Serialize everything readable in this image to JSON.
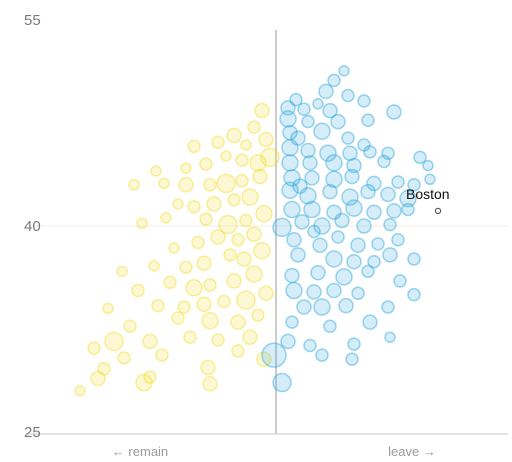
{
  "chart_data": {
    "type": "scatter",
    "title": "",
    "xlabel": "",
    "ylabel": "",
    "x_caption_left": "← remain",
    "x_caption_right": "leave →",
    "ylim": [
      25,
      55
    ],
    "xlim": [
      -1,
      1
    ],
    "yticks": [
      "55",
      "40",
      "25"
    ],
    "ytick_values": [
      55,
      40,
      25
    ],
    "grid": false,
    "reference_line_y": 40,
    "divider_x": 0,
    "colors": {
      "remain": "#f2dc28",
      "leave": "#2aa5dc",
      "annotation": "#555555",
      "axis": "#9a9a9a"
    },
    "annotation": {
      "label": "Boston",
      "x": 0.81,
      "y": 41.1
    },
    "series": [
      {
        "name": "remain",
        "points": [
          {
            "x": -0.07,
            "y": 48.4,
            "s": 7
          },
          {
            "x": -0.11,
            "y": 47.2,
            "s": 6
          },
          {
            "x": -0.21,
            "y": 46.6,
            "s": 7
          },
          {
            "x": -0.29,
            "y": 46.1,
            "s": 6
          },
          {
            "x": -0.05,
            "y": 46.3,
            "s": 7
          },
          {
            "x": -0.15,
            "y": 45.9,
            "s": 5
          },
          {
            "x": -0.41,
            "y": 45.8,
            "s": 6
          },
          {
            "x": -0.03,
            "y": 45.0,
            "s": 9
          },
          {
            "x": -0.09,
            "y": 44.6,
            "s": 8
          },
          {
            "x": -0.17,
            "y": 44.8,
            "s": 6
          },
          {
            "x": -0.25,
            "y": 45.1,
            "s": 5
          },
          {
            "x": -0.35,
            "y": 44.5,
            "s": 6
          },
          {
            "x": -0.45,
            "y": 44.2,
            "s": 5
          },
          {
            "x": -0.6,
            "y": 44.0,
            "s": 5
          },
          {
            "x": -0.08,
            "y": 43.6,
            "s": 7
          },
          {
            "x": -0.17,
            "y": 43.3,
            "s": 6
          },
          {
            "x": -0.25,
            "y": 43.1,
            "s": 9
          },
          {
            "x": -0.33,
            "y": 43.0,
            "s": 6
          },
          {
            "x": -0.45,
            "y": 43.0,
            "s": 7
          },
          {
            "x": -0.56,
            "y": 43.1,
            "s": 5
          },
          {
            "x": -0.71,
            "y": 43.0,
            "s": 5
          },
          {
            "x": -0.13,
            "y": 42.1,
            "s": 8
          },
          {
            "x": -0.21,
            "y": 41.9,
            "s": 6
          },
          {
            "x": -0.31,
            "y": 41.6,
            "s": 7
          },
          {
            "x": -0.41,
            "y": 41.4,
            "s": 6
          },
          {
            "x": -0.49,
            "y": 41.6,
            "s": 5
          },
          {
            "x": -0.06,
            "y": 40.9,
            "s": 8
          },
          {
            "x": -0.15,
            "y": 40.4,
            "s": 6
          },
          {
            "x": -0.24,
            "y": 40.1,
            "s": 9
          },
          {
            "x": -0.35,
            "y": 40.5,
            "s": 6
          },
          {
            "x": -0.55,
            "y": 40.6,
            "s": 5
          },
          {
            "x": -0.67,
            "y": 40.2,
            "s": 5
          },
          {
            "x": -0.11,
            "y": 39.4,
            "s": 7
          },
          {
            "x": -0.19,
            "y": 39.0,
            "s": 6
          },
          {
            "x": -0.29,
            "y": 39.2,
            "s": 7
          },
          {
            "x": -0.39,
            "y": 38.8,
            "s": 6
          },
          {
            "x": -0.51,
            "y": 38.4,
            "s": 5
          },
          {
            "x": -0.07,
            "y": 38.2,
            "s": 8
          },
          {
            "x": -0.16,
            "y": 37.6,
            "s": 7
          },
          {
            "x": -0.23,
            "y": 37.9,
            "s": 6
          },
          {
            "x": -0.36,
            "y": 37.3,
            "s": 7
          },
          {
            "x": -0.45,
            "y": 37.0,
            "s": 6
          },
          {
            "x": -0.61,
            "y": 37.1,
            "s": 5
          },
          {
            "x": -0.77,
            "y": 36.7,
            "s": 5
          },
          {
            "x": -0.11,
            "y": 36.5,
            "s": 8
          },
          {
            "x": -0.21,
            "y": 36.0,
            "s": 7
          },
          {
            "x": -0.33,
            "y": 35.7,
            "s": 6
          },
          {
            "x": -0.41,
            "y": 35.5,
            "s": 8
          },
          {
            "x": -0.53,
            "y": 35.9,
            "s": 6
          },
          {
            "x": -0.69,
            "y": 35.3,
            "s": 6
          },
          {
            "x": -0.05,
            "y": 35.1,
            "s": 7
          },
          {
            "x": -0.15,
            "y": 34.6,
            "s": 9
          },
          {
            "x": -0.26,
            "y": 34.5,
            "s": 6
          },
          {
            "x": -0.36,
            "y": 34.3,
            "s": 7
          },
          {
            "x": -0.46,
            "y": 34.1,
            "s": 6
          },
          {
            "x": -0.59,
            "y": 34.2,
            "s": 6
          },
          {
            "x": -0.84,
            "y": 34.0,
            "s": 5
          },
          {
            "x": -0.09,
            "y": 33.5,
            "s": 6
          },
          {
            "x": -0.19,
            "y": 33.0,
            "s": 7
          },
          {
            "x": -0.33,
            "y": 33.1,
            "s": 8
          },
          {
            "x": -0.49,
            "y": 33.3,
            "s": 6
          },
          {
            "x": -0.73,
            "y": 32.7,
            "s": 6
          },
          {
            "x": -0.13,
            "y": 31.9,
            "s": 7
          },
          {
            "x": -0.29,
            "y": 31.7,
            "s": 6
          },
          {
            "x": -0.43,
            "y": 31.9,
            "s": 6
          },
          {
            "x": -0.63,
            "y": 31.6,
            "s": 7
          },
          {
            "x": -0.81,
            "y": 31.6,
            "s": 9
          },
          {
            "x": -0.91,
            "y": 31.1,
            "s": 6
          },
          {
            "x": -0.57,
            "y": 30.6,
            "s": 6
          },
          {
            "x": -0.76,
            "y": 30.4,
            "s": 6
          },
          {
            "x": -0.34,
            "y": 29.7,
            "s": 7
          },
          {
            "x": -0.86,
            "y": 29.6,
            "s": 6
          },
          {
            "x": -0.63,
            "y": 29.0,
            "s": 6
          },
          {
            "x": -0.89,
            "y": 28.9,
            "s": 7
          },
          {
            "x": -0.33,
            "y": 28.5,
            "s": 7
          },
          {
            "x": -0.66,
            "y": 28.6,
            "s": 8
          },
          {
            "x": -0.98,
            "y": 28.0,
            "s": 5
          },
          {
            "x": -0.06,
            "y": 30.3,
            "s": 7
          },
          {
            "x": -0.19,
            "y": 30.9,
            "s": 6
          }
        ]
      },
      {
        "name": "leave",
        "points": [
          {
            "x": 0.34,
            "y": 51.3,
            "s": 5
          },
          {
            "x": 0.29,
            "y": 50.6,
            "s": 6
          },
          {
            "x": 0.25,
            "y": 49.8,
            "s": 7
          },
          {
            "x": 0.36,
            "y": 49.5,
            "s": 6
          },
          {
            "x": 0.44,
            "y": 49.1,
            "s": 6
          },
          {
            "x": 0.21,
            "y": 48.9,
            "s": 5
          },
          {
            "x": 0.06,
            "y": 48.6,
            "s": 7
          },
          {
            "x": 0.14,
            "y": 48.5,
            "s": 6
          },
          {
            "x": 0.27,
            "y": 48.4,
            "s": 7
          },
          {
            "x": 0.59,
            "y": 48.3,
            "s": 7
          },
          {
            "x": 0.06,
            "y": 47.8,
            "s": 8
          },
          {
            "x": 0.16,
            "y": 47.6,
            "s": 6
          },
          {
            "x": 0.31,
            "y": 47.6,
            "s": 7
          },
          {
            "x": 0.46,
            "y": 47.7,
            "s": 6
          },
          {
            "x": 0.07,
            "y": 46.8,
            "s": 7
          },
          {
            "x": 0.23,
            "y": 46.9,
            "s": 8
          },
          {
            "x": 0.36,
            "y": 46.4,
            "s": 6
          },
          {
            "x": 0.11,
            "y": 46.4,
            "s": 7
          },
          {
            "x": 0.07,
            "y": 45.7,
            "s": 8
          },
          {
            "x": 0.16,
            "y": 45.5,
            "s": 7
          },
          {
            "x": 0.26,
            "y": 45.3,
            "s": 8
          },
          {
            "x": 0.37,
            "y": 45.3,
            "s": 7
          },
          {
            "x": 0.47,
            "y": 45.4,
            "s": 6
          },
          {
            "x": 0.56,
            "y": 45.3,
            "s": 6
          },
          {
            "x": 0.07,
            "y": 44.6,
            "s": 8
          },
          {
            "x": 0.17,
            "y": 44.6,
            "s": 7
          },
          {
            "x": 0.29,
            "y": 44.6,
            "s": 8
          },
          {
            "x": 0.39,
            "y": 44.4,
            "s": 7
          },
          {
            "x": 0.54,
            "y": 44.7,
            "s": 6
          },
          {
            "x": 0.72,
            "y": 45.0,
            "s": 6
          },
          {
            "x": 0.76,
            "y": 44.4,
            "s": 5
          },
          {
            "x": 0.08,
            "y": 43.5,
            "s": 8
          },
          {
            "x": 0.18,
            "y": 43.5,
            "s": 7
          },
          {
            "x": 0.29,
            "y": 43.4,
            "s": 8
          },
          {
            "x": 0.38,
            "y": 43.6,
            "s": 7
          },
          {
            "x": 0.49,
            "y": 43.1,
            "s": 7
          },
          {
            "x": 0.61,
            "y": 43.2,
            "s": 6
          },
          {
            "x": 0.69,
            "y": 43.0,
            "s": 6
          },
          {
            "x": 0.77,
            "y": 43.4,
            "s": 5
          },
          {
            "x": 0.07,
            "y": 42.6,
            "s": 8
          },
          {
            "x": 0.16,
            "y": 42.2,
            "s": 8
          },
          {
            "x": 0.27,
            "y": 42.5,
            "s": 7
          },
          {
            "x": 0.37,
            "y": 42.1,
            "s": 8
          },
          {
            "x": 0.46,
            "y": 42.5,
            "s": 7
          },
          {
            "x": 0.56,
            "y": 42.3,
            "s": 7
          },
          {
            "x": 0.66,
            "y": 42.0,
            "s": 8
          },
          {
            "x": 0.08,
            "y": 41.2,
            "s": 8
          },
          {
            "x": 0.18,
            "y": 41.2,
            "s": 8
          },
          {
            "x": 0.29,
            "y": 41.0,
            "s": 7
          },
          {
            "x": 0.39,
            "y": 41.3,
            "s": 8
          },
          {
            "x": 0.49,
            "y": 41.0,
            "s": 7
          },
          {
            "x": 0.59,
            "y": 41.1,
            "s": 7
          },
          {
            "x": 0.66,
            "y": 41.2,
            "s": 6
          },
          {
            "x": 0.03,
            "y": 39.9,
            "s": 9
          },
          {
            "x": 0.13,
            "y": 40.3,
            "s": 7
          },
          {
            "x": 0.23,
            "y": 40.0,
            "s": 8
          },
          {
            "x": 0.33,
            "y": 40.4,
            "s": 7
          },
          {
            "x": 0.44,
            "y": 40.0,
            "s": 7
          },
          {
            "x": 0.57,
            "y": 40.1,
            "s": 6
          },
          {
            "x": 0.09,
            "y": 39.0,
            "s": 7
          },
          {
            "x": 0.22,
            "y": 38.6,
            "s": 7
          },
          {
            "x": 0.31,
            "y": 39.2,
            "s": 6
          },
          {
            "x": 0.41,
            "y": 38.6,
            "s": 7
          },
          {
            "x": 0.51,
            "y": 38.7,
            "s": 6
          },
          {
            "x": 0.61,
            "y": 39.0,
            "s": 6
          },
          {
            "x": 0.11,
            "y": 37.9,
            "s": 7
          },
          {
            "x": 0.29,
            "y": 37.6,
            "s": 8
          },
          {
            "x": 0.39,
            "y": 37.4,
            "s": 7
          },
          {
            "x": 0.49,
            "y": 37.4,
            "s": 6
          },
          {
            "x": 0.57,
            "y": 37.9,
            "s": 7
          },
          {
            "x": 0.69,
            "y": 37.6,
            "s": 6
          },
          {
            "x": 0.08,
            "y": 36.4,
            "s": 7
          },
          {
            "x": 0.21,
            "y": 36.6,
            "s": 7
          },
          {
            "x": 0.34,
            "y": 36.3,
            "s": 8
          },
          {
            "x": 0.46,
            "y": 36.7,
            "s": 6
          },
          {
            "x": 0.62,
            "y": 36.0,
            "s": 6
          },
          {
            "x": 0.09,
            "y": 35.3,
            "s": 8
          },
          {
            "x": 0.19,
            "y": 35.2,
            "s": 7
          },
          {
            "x": 0.29,
            "y": 35.3,
            "s": 7
          },
          {
            "x": 0.41,
            "y": 35.1,
            "s": 6
          },
          {
            "x": 0.69,
            "y": 35.0,
            "s": 6
          },
          {
            "x": 0.14,
            "y": 34.1,
            "s": 7
          },
          {
            "x": 0.23,
            "y": 34.1,
            "s": 8
          },
          {
            "x": 0.35,
            "y": 34.2,
            "s": 7
          },
          {
            "x": 0.56,
            "y": 34.1,
            "s": 6
          },
          {
            "x": 0.08,
            "y": 33.0,
            "s": 6
          },
          {
            "x": 0.27,
            "y": 32.7,
            "s": 6
          },
          {
            "x": 0.47,
            "y": 33.0,
            "s": 7
          },
          {
            "x": 0.06,
            "y": 31.6,
            "s": 7
          },
          {
            "x": 0.17,
            "y": 31.3,
            "s": 6
          },
          {
            "x": 0.39,
            "y": 31.4,
            "s": 6
          },
          {
            "x": 0.57,
            "y": 31.9,
            "s": 5
          },
          {
            "x": 0.23,
            "y": 30.6,
            "s": 6
          },
          {
            "x": 0.38,
            "y": 30.3,
            "s": 6
          },
          {
            "x": -0.01,
            "y": 30.6,
            "s": 12
          },
          {
            "x": 0.03,
            "y": 28.6,
            "s": 9
          },
          {
            "x": 0.12,
            "y": 42.9,
            "s": 7
          },
          {
            "x": 0.44,
            "y": 45.9,
            "s": 6
          },
          {
            "x": 0.1,
            "y": 49.2,
            "s": 6
          },
          {
            "x": 0.19,
            "y": 39.6,
            "s": 6
          }
        ]
      }
    ]
  }
}
